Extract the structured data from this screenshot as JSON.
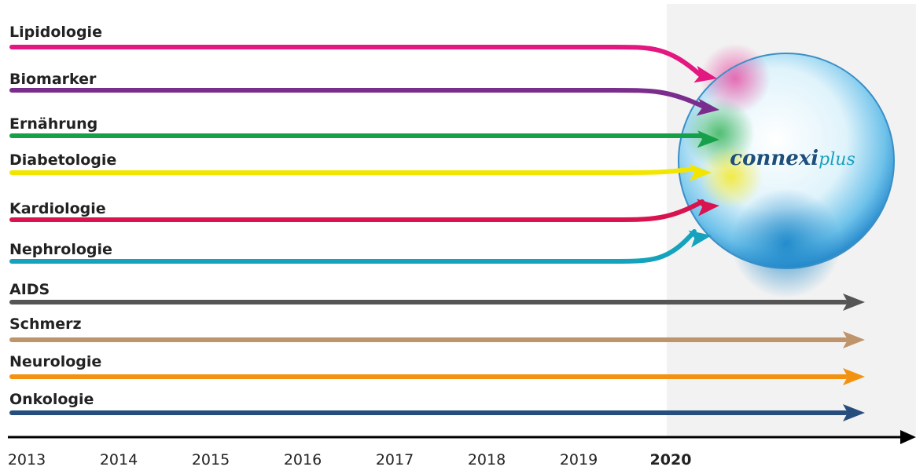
{
  "streams": [
    {
      "label": "Lipidologie",
      "color": "#e3177f"
    },
    {
      "label": "Biomarker",
      "color": "#7a2d8c"
    },
    {
      "label": "Ernährung",
      "color": "#16a04a"
    },
    {
      "label": "Diabetologie",
      "color": "#f2e600"
    },
    {
      "label": "Kardiologie",
      "color": "#d8134f"
    },
    {
      "label": "Nephrologie",
      "color": "#14a2bd"
    },
    {
      "label": "AIDS",
      "color": "#555555"
    },
    {
      "label": "Schmerz",
      "color": "#bf946a"
    },
    {
      "label": "Neurologie",
      "color": "#f39210"
    },
    {
      "label": "Onkologie",
      "color": "#264d7d"
    }
  ],
  "years": [
    "2013",
    "2014",
    "2015",
    "2016",
    "2017",
    "2018",
    "2019",
    "2020"
  ],
  "logo": {
    "main": "connexi",
    "accent": "plus"
  }
}
